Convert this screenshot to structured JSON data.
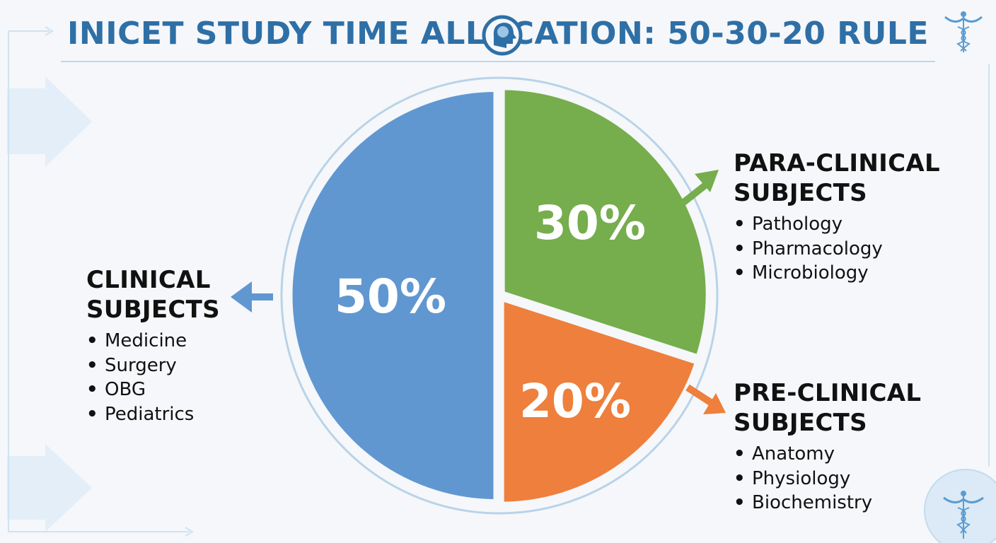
{
  "title": "INICET STUDY TIME ALLOCATION: 50-30-20 RULE",
  "colors": {
    "clinical": "#6097d1",
    "para_clinical": "#76ad4d",
    "pre_clinical": "#ee7f3c",
    "title": "#2e6fa6",
    "background": "#f5f7fa"
  },
  "icons": [
    "brain-head-icon",
    "caduceus-icon",
    "arrow-icon"
  ],
  "chart_data": {
    "type": "pie",
    "title": "INICET STUDY TIME ALLOCATION: 50-30-20 RULE",
    "labels": [
      "CLINICAL SUBJECTS",
      "PARA-CLINICAL SUBJECTS",
      "PRE-CLINICAL SUBJECTS"
    ],
    "values": [
      50,
      30,
      20
    ],
    "value_labels": [
      "50%",
      "30%",
      "20%"
    ],
    "colors": [
      "#6097d1",
      "#76ad4d",
      "#ee7f3c"
    ]
  },
  "groups": {
    "clinical": {
      "heading_line1": "CLINICAL",
      "heading_line2": "SUBJECTS",
      "items": [
        "Medicine",
        "Surgery",
        "OBG",
        "Pediatrics"
      ]
    },
    "para_clinical": {
      "heading_line1": "PARA-CLINICAL",
      "heading_line2": "SUBJECTS",
      "items": [
        "Pathology",
        "Pharmacology",
        "Microbiology"
      ]
    },
    "pre_clinical": {
      "heading_line1": "PRE-CLINICAL",
      "heading_line2": "SUBJECTS",
      "items": [
        "Anatomy",
        "Physiology",
        "Biochemistry"
      ]
    }
  }
}
